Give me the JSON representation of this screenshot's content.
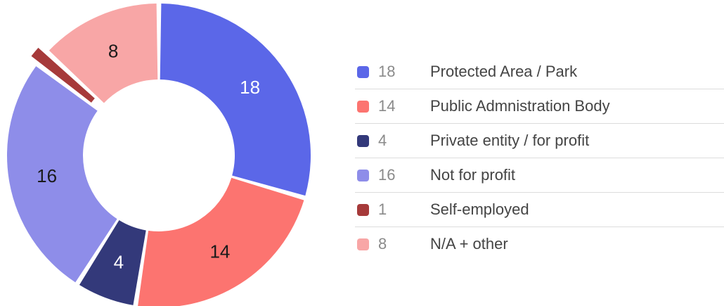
{
  "chart_data": {
    "type": "pie",
    "donut": true,
    "legend_position": "right",
    "slices": [
      {
        "value": 18,
        "label": "Protected Area / Park",
        "color": "#5b67e8",
        "label_color": "#ffffff"
      },
      {
        "value": 14,
        "label": "Public Admnistration Body",
        "color": "#fc7470",
        "label_color": "#1a1a1a"
      },
      {
        "value": 4,
        "label": "Private entity / for profit",
        "color": "#33397a",
        "label_color": "#ffffff"
      },
      {
        "value": 16,
        "label": "Not for profit",
        "color": "#8e8de9",
        "label_color": "#1a1a1a"
      },
      {
        "value": 1,
        "label": "Self-employed",
        "color": "#a63a3a",
        "label_color": "#ffffff",
        "show_slice_label": false
      },
      {
        "value": 8,
        "label": "N/A + other",
        "color": "#f8a6a6",
        "label_color": "#1a1a1a"
      }
    ]
  }
}
